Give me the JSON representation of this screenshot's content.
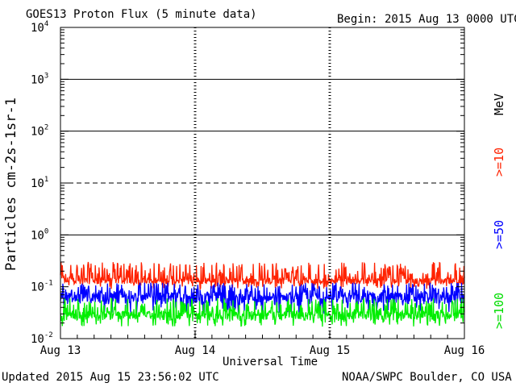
{
  "header": {
    "title": "GOES13 Proton Flux (5 minute data)",
    "begin": "Begin: 2015 Aug 13 0000 UTC"
  },
  "footer": {
    "updated": "Updated 2015 Aug 15 23:56:02 UTC",
    "credit": "NOAA/SWPC Boulder, CO USA"
  },
  "colors": {
    "ge10": "#ff2200",
    "ge50": "#0000ff",
    "ge100": "#00ee00",
    "grid": "#000000"
  },
  "chart_data": {
    "type": "line",
    "title": "GOES13 Proton Flux (5 minute data)",
    "xlabel": "Universal Time",
    "ylabel": "Particles cm-2s-1sr-1",
    "yscale": "log",
    "ylim": [
      0.01,
      10000
    ],
    "xlim": [
      0,
      72
    ],
    "x_ticks": [
      {
        "label": "Aug 13",
        "x": 0
      },
      {
        "label": "Aug 14",
        "x": 24
      },
      {
        "label": "Aug 15",
        "x": 48
      },
      {
        "label": "Aug 16",
        "x": 72
      }
    ],
    "y_ticks": [
      {
        "base": "10",
        "exp": "-2",
        "value": 0.01
      },
      {
        "base": "10",
        "exp": "-1",
        "value": 0.1
      },
      {
        "base": "10",
        "exp": "0",
        "value": 1
      },
      {
        "base": "10",
        "exp": "1",
        "value": 10
      },
      {
        "base": "10",
        "exp": "2",
        "value": 100
      },
      {
        "base": "10",
        "exp": "3",
        "value": 1000
      },
      {
        "base": "10",
        "exp": "4",
        "value": 10000
      }
    ],
    "units_label": "MeV",
    "thresholds": [
      {
        "value": 10,
        "style": "dashed"
      },
      {
        "value": 1,
        "style": "solid"
      }
    ],
    "series": [
      {
        "name": ">=10",
        "color": "#ff2200",
        "typical_range": [
          0.09,
          0.3
        ],
        "mean": 0.13
      },
      {
        "name": ">=50",
        "color": "#0000ff",
        "typical_range": [
          0.03,
          0.12
        ],
        "mean": 0.06
      },
      {
        "name": ">=100",
        "color": "#00ee00",
        "typical_range": [
          0.017,
          0.06
        ],
        "mean": 0.028
      }
    ]
  }
}
